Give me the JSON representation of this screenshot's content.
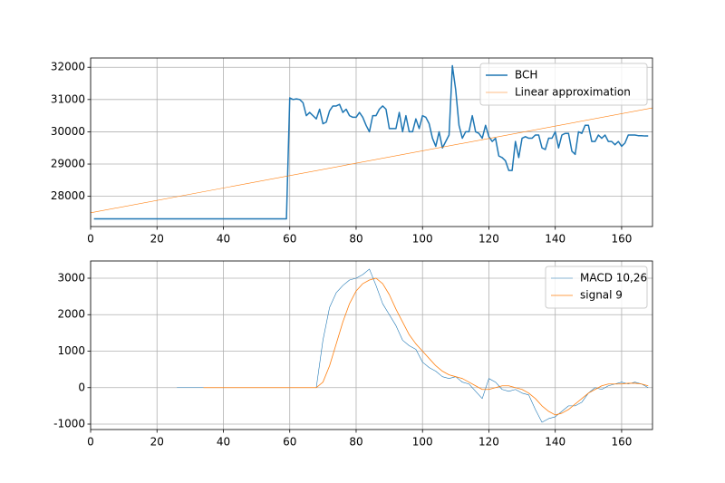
{
  "chart_data": [
    {
      "type": "line",
      "grid": true,
      "legend": "upper right",
      "xlim": [
        0,
        169.3
      ],
      "ylim": [
        27063,
        32287
      ],
      "xticks": [
        0,
        20,
        40,
        60,
        80,
        100,
        120,
        140,
        160
      ],
      "yticks": [
        28000,
        29000,
        30000,
        31000,
        32000
      ],
      "series": [
        {
          "name": "BCH",
          "color": "#1f77b4",
          "x": [
            1,
            59,
            60,
            61,
            62,
            63,
            64,
            65,
            66,
            67,
            68,
            69,
            70,
            71,
            72,
            73,
            74,
            75,
            76,
            77,
            78,
            79,
            80,
            81,
            82,
            83,
            84,
            85,
            86,
            87,
            88,
            89,
            90,
            91,
            92,
            93,
            94,
            95,
            96,
            97,
            98,
            99,
            100,
            101,
            102,
            103,
            104,
            105,
            106,
            107,
            108,
            109,
            110,
            111,
            112,
            113,
            114,
            115,
            116,
            117,
            118,
            119,
            120,
            121,
            122,
            123,
            124,
            125,
            126,
            127,
            128,
            129,
            130,
            131,
            132,
            133,
            134,
            135,
            136,
            137,
            138,
            139,
            140,
            141,
            142,
            143,
            144,
            145,
            146,
            147,
            148,
            149,
            150,
            151,
            152,
            153,
            154,
            155,
            156,
            157,
            158,
            159,
            160,
            161,
            162,
            163,
            164,
            165,
            166,
            167,
            168
          ],
          "values": [
            27300,
            27300,
            31050,
            31000,
            31020,
            31000,
            30900,
            30500,
            30600,
            30500,
            30400,
            30700,
            30250,
            30300,
            30650,
            30800,
            30800,
            30850,
            30600,
            30700,
            30500,
            30450,
            30450,
            30600,
            30450,
            30200,
            30000,
            30500,
            30500,
            30700,
            30800,
            30700,
            30100,
            30100,
            30100,
            30600,
            30000,
            30500,
            30000,
            30000,
            30400,
            30100,
            30500,
            30450,
            30250,
            29800,
            29550,
            30000,
            29500,
            29700,
            29900,
            32050,
            31300,
            30200,
            29800,
            30000,
            30000,
            30500,
            30000,
            29950,
            29800,
            30200,
            29850,
            29700,
            29800,
            29250,
            29200,
            29100,
            28800,
            28800,
            29700,
            29200,
            29800,
            29850,
            29800,
            29800,
            29900,
            29900,
            29500,
            29450,
            29800,
            29800,
            30000,
            29500,
            29900,
            29950,
            29950,
            29400,
            29300,
            30000,
            29950,
            30200,
            30200,
            29700,
            29700,
            29900,
            29800,
            29900,
            29700,
            29700,
            29600,
            29700,
            29550,
            29650,
            29900,
            29900,
            29900,
            29880,
            29880,
            29870,
            29870
          ]
        },
        {
          "name": "Linear approximation",
          "color": "#ff7f0e",
          "x": [
            0,
            169.3
          ],
          "values": [
            27490,
            30740
          ]
        }
      ]
    },
    {
      "type": "line",
      "grid": true,
      "legend": "upper right",
      "xlim": [
        0,
        169.3
      ],
      "ylim": [
        -1149,
        3472
      ],
      "xticks": [
        0,
        20,
        40,
        60,
        80,
        100,
        120,
        140,
        160
      ],
      "yticks": [
        -1000,
        0,
        1000,
        2000,
        3000
      ],
      "series": [
        {
          "name": "MACD 10,26",
          "color": "#1f77b4",
          "x": [
            26,
            68,
            70,
            72,
            74,
            76,
            78,
            80,
            82,
            84,
            86,
            88,
            90,
            92,
            94,
            96,
            98,
            100,
            102,
            104,
            106,
            108,
            110,
            112,
            114,
            116,
            118,
            120,
            122,
            124,
            126,
            128,
            130,
            132,
            134,
            136,
            138,
            140,
            142,
            144,
            146,
            148,
            150,
            152,
            154,
            156,
            158,
            160,
            162,
            164,
            166,
            168
          ],
          "values": [
            0,
            0,
            1300,
            2200,
            2600,
            2800,
            2950,
            3000,
            3100,
            3250,
            2800,
            2300,
            2000,
            1700,
            1300,
            1150,
            1050,
            700,
            550,
            450,
            300,
            250,
            300,
            150,
            100,
            -100,
            -300,
            250,
            150,
            -50,
            -100,
            -50,
            -150,
            -200,
            -600,
            -950,
            -850,
            -800,
            -650,
            -500,
            -500,
            -400,
            -150,
            0,
            -50,
            50,
            100,
            150,
            100,
            150,
            100,
            0
          ]
        },
        {
          "name": "signal 9",
          "color": "#ff7f0e",
          "x": [
            34,
            68,
            70,
            72,
            74,
            76,
            78,
            80,
            82,
            84,
            86,
            88,
            90,
            92,
            94,
            96,
            98,
            100,
            102,
            104,
            106,
            108,
            110,
            112,
            114,
            116,
            118,
            120,
            122,
            124,
            126,
            128,
            130,
            132,
            134,
            136,
            138,
            140,
            142,
            144,
            146,
            148,
            150,
            152,
            154,
            156,
            158,
            160,
            162,
            164,
            166,
            168
          ],
          "values": [
            0,
            0,
            150,
            600,
            1200,
            1800,
            2300,
            2650,
            2850,
            2950,
            3000,
            2850,
            2550,
            2150,
            1800,
            1450,
            1200,
            1000,
            800,
            600,
            450,
            350,
            300,
            250,
            150,
            50,
            -50,
            -50,
            0,
            50,
            50,
            0,
            -50,
            -150,
            -300,
            -500,
            -650,
            -750,
            -700,
            -600,
            -450,
            -300,
            -150,
            -50,
            50,
            100,
            100,
            100,
            120,
            120,
            100,
            50
          ]
        }
      ]
    }
  ]
}
